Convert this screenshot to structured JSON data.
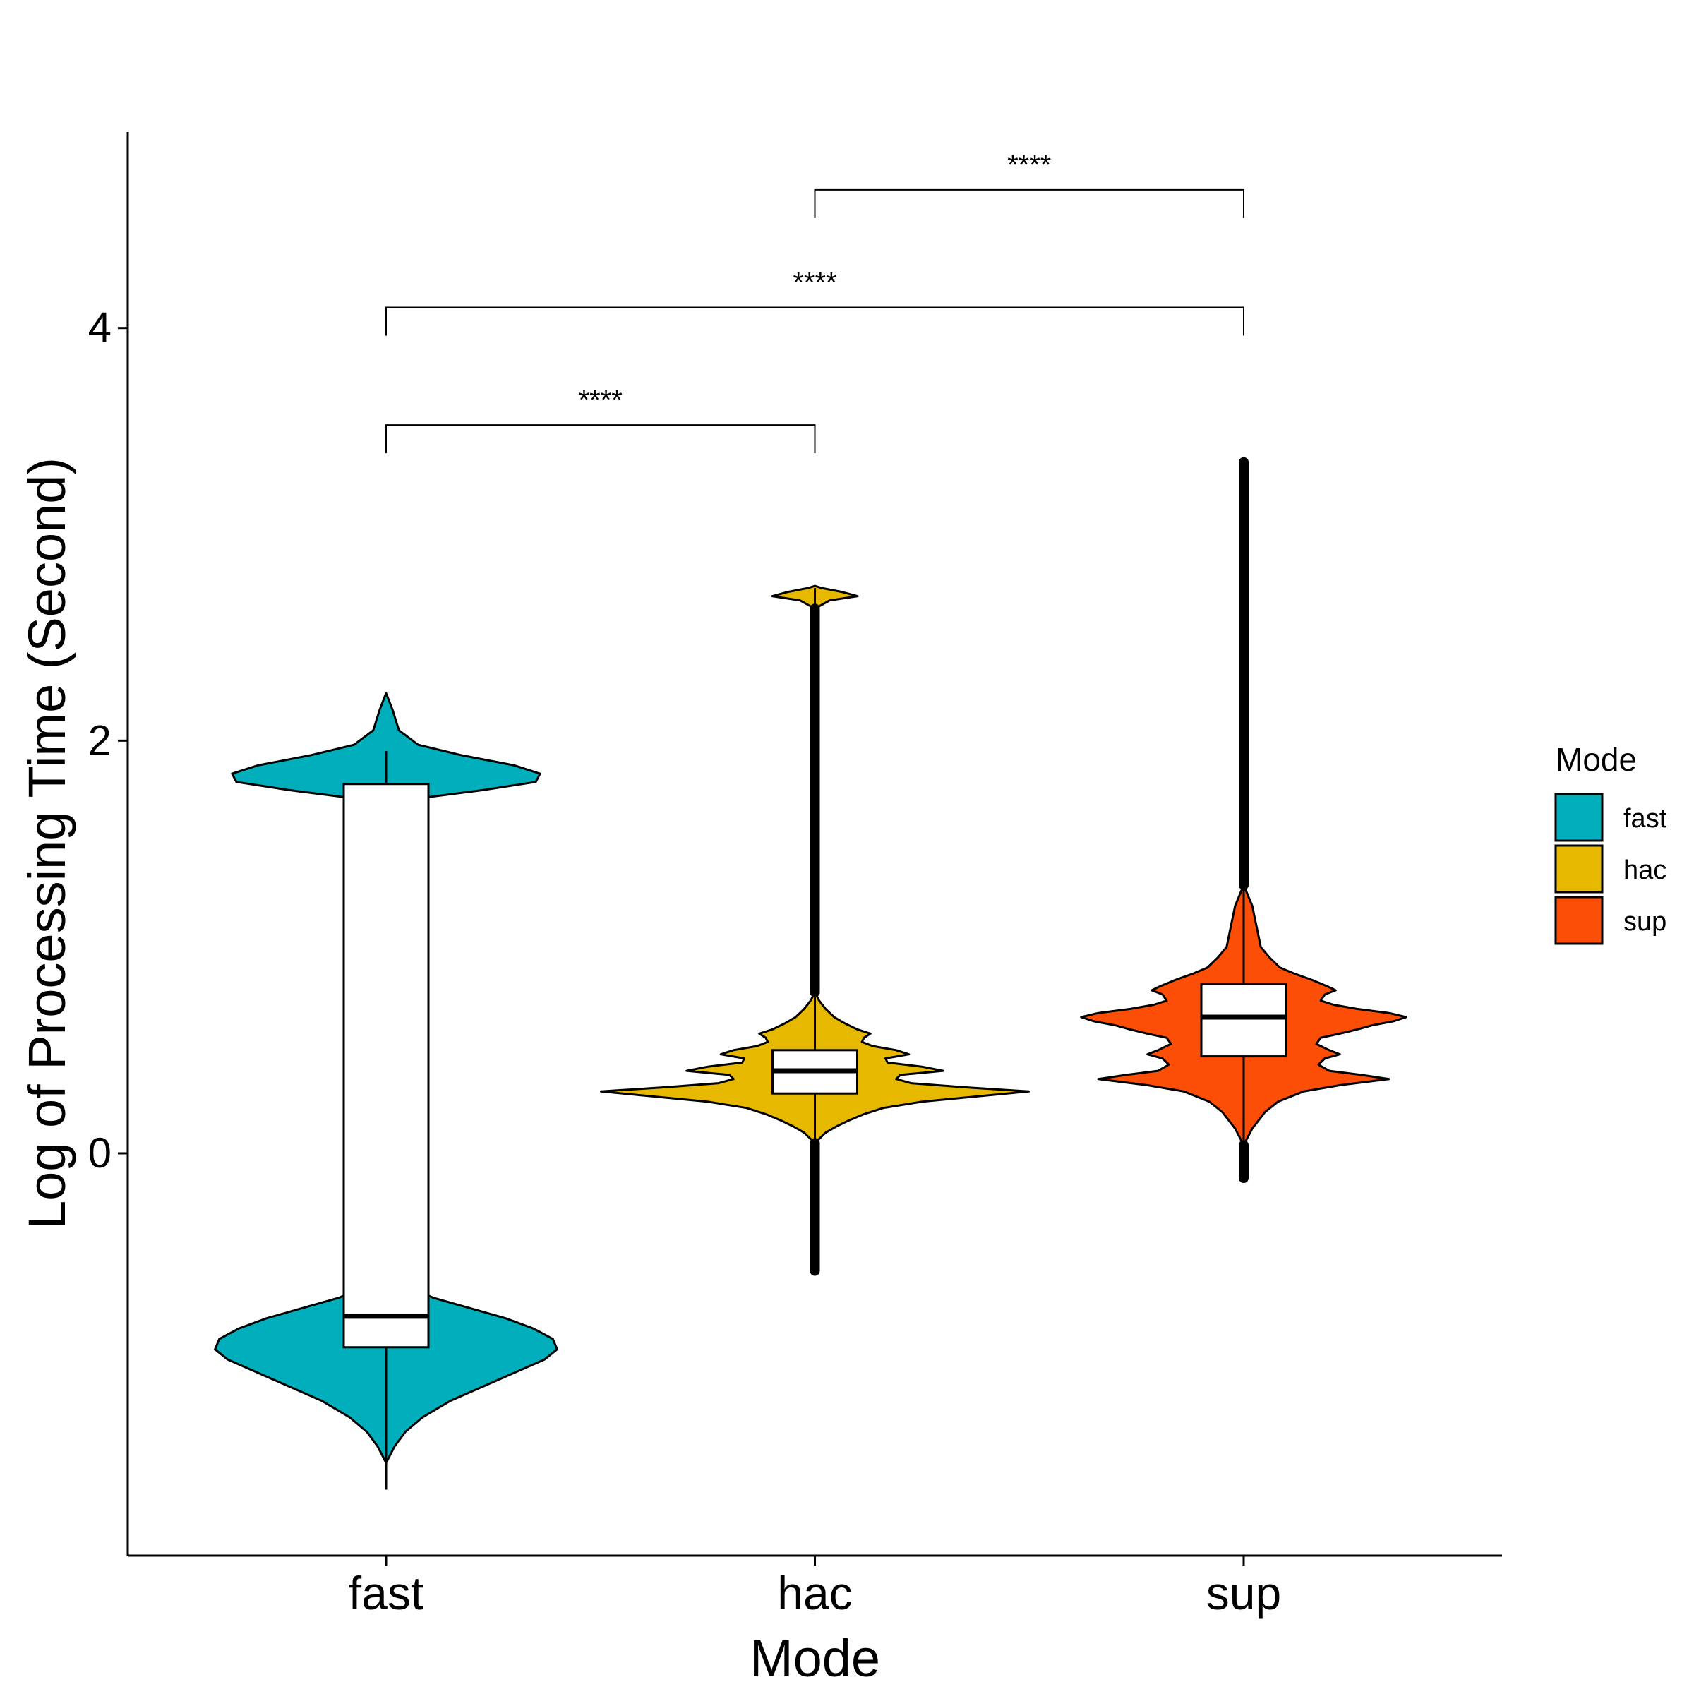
{
  "chart_data": {
    "type": "violin",
    "xlabel": "Mode",
    "ylabel": "Log of Processing Time (Second)",
    "categories": [
      "fast",
      "hac",
      "sup"
    ],
    "ylim": [
      -1.95,
      4.95
    ],
    "yticks": [
      0,
      2,
      4
    ],
    "legend": {
      "title": "Mode",
      "placement": "right",
      "entries": [
        {
          "label": "fast",
          "color": "#00AFBB"
        },
        {
          "label": "hac",
          "color": "#E7B800"
        },
        {
          "label": "sup",
          "color": "#FC4E07"
        }
      ]
    },
    "groups": [
      {
        "name": "fast",
        "color": "#00AFBB",
        "box": {
          "q1": -0.94,
          "median": -0.79,
          "q3": 1.79,
          "whisker_low": -1.63,
          "whisker_high": 1.95
        },
        "violin_min": -1.5,
        "violin_max": 2.23,
        "profile": [
          [
            -1.5,
            0.0
          ],
          [
            -1.42,
            0.04
          ],
          [
            -1.35,
            0.09
          ],
          [
            -1.28,
            0.17
          ],
          [
            -1.2,
            0.3
          ],
          [
            -1.1,
            0.52
          ],
          [
            -1.0,
            0.74
          ],
          [
            -0.95,
            0.8
          ],
          [
            -0.9,
            0.78
          ],
          [
            -0.85,
            0.69
          ],
          [
            -0.8,
            0.56
          ],
          [
            -0.75,
            0.39
          ],
          [
            -0.7,
            0.22
          ],
          [
            -0.65,
            0.11
          ],
          [
            -0.6,
            0.0
          ],
          [
            1.7,
            0.0
          ],
          [
            1.76,
            0.45
          ],
          [
            1.8,
            0.7
          ],
          [
            1.84,
            0.72
          ],
          [
            1.88,
            0.6
          ],
          [
            1.93,
            0.35
          ],
          [
            1.98,
            0.15
          ],
          [
            2.05,
            0.06
          ],
          [
            2.15,
            0.03
          ],
          [
            2.23,
            0.0
          ]
        ],
        "outliers": []
      },
      {
        "name": "hac",
        "color": "#E7B800",
        "box": {
          "q1": 0.29,
          "median": 0.4,
          "q3": 0.5,
          "whisker_low": -0.57,
          "whisker_high": 2.74
        },
        "violin_min": 0.05,
        "violin_max": 2.75,
        "profile": [
          [
            0.05,
            0.0
          ],
          [
            0.07,
            0.02
          ],
          [
            0.1,
            0.05
          ],
          [
            0.13,
            0.1
          ],
          [
            0.16,
            0.16
          ],
          [
            0.19,
            0.23
          ],
          [
            0.22,
            0.32
          ],
          [
            0.25,
            0.5
          ],
          [
            0.28,
            0.8
          ],
          [
            0.3,
            1.0
          ],
          [
            0.32,
            0.7
          ],
          [
            0.34,
            0.45
          ],
          [
            0.36,
            0.38
          ],
          [
            0.38,
            0.4
          ],
          [
            0.4,
            0.6
          ],
          [
            0.42,
            0.5
          ],
          [
            0.44,
            0.34
          ],
          [
            0.46,
            0.33
          ],
          [
            0.48,
            0.44
          ],
          [
            0.5,
            0.38
          ],
          [
            0.52,
            0.27
          ],
          [
            0.54,
            0.22
          ],
          [
            0.56,
            0.23
          ],
          [
            0.58,
            0.26
          ],
          [
            0.6,
            0.2
          ],
          [
            0.63,
            0.14
          ],
          [
            0.66,
            0.09
          ],
          [
            0.7,
            0.05
          ],
          [
            0.74,
            0.02
          ],
          [
            0.78,
            0.0
          ],
          [
            2.64,
            0.0
          ],
          [
            2.68,
            0.07
          ],
          [
            2.7,
            0.2
          ],
          [
            2.72,
            0.13
          ],
          [
            2.74,
            0.03
          ],
          [
            2.75,
            0.0
          ]
        ],
        "outliers": [
          {
            "from": -0.57,
            "to": 0.05
          },
          {
            "from": 0.78,
            "to": 2.64
          }
        ]
      },
      {
        "name": "sup",
        "color": "#FC4E07",
        "box": {
          "q1": 0.47,
          "median": 0.66,
          "q3": 0.82,
          "whisker_low": -0.12,
          "whisker_high": 3.35
        },
        "violin_min": 0.04,
        "violin_max": 1.3,
        "profile": [
          [
            0.04,
            0.0
          ],
          [
            0.08,
            0.02
          ],
          [
            0.12,
            0.04
          ],
          [
            0.16,
            0.07
          ],
          [
            0.2,
            0.1
          ],
          [
            0.25,
            0.16
          ],
          [
            0.3,
            0.28
          ],
          [
            0.33,
            0.45
          ],
          [
            0.36,
            0.68
          ],
          [
            0.38,
            0.55
          ],
          [
            0.4,
            0.4
          ],
          [
            0.43,
            0.35
          ],
          [
            0.46,
            0.38
          ],
          [
            0.48,
            0.45
          ],
          [
            0.5,
            0.4
          ],
          [
            0.53,
            0.34
          ],
          [
            0.56,
            0.36
          ],
          [
            0.58,
            0.45
          ],
          [
            0.6,
            0.53
          ],
          [
            0.62,
            0.6
          ],
          [
            0.64,
            0.7
          ],
          [
            0.66,
            0.76
          ],
          [
            0.68,
            0.68
          ],
          [
            0.7,
            0.53
          ],
          [
            0.72,
            0.42
          ],
          [
            0.74,
            0.36
          ],
          [
            0.77,
            0.38
          ],
          [
            0.79,
            0.43
          ],
          [
            0.81,
            0.39
          ],
          [
            0.84,
            0.32
          ],
          [
            0.87,
            0.24
          ],
          [
            0.9,
            0.17
          ],
          [
            0.95,
            0.12
          ],
          [
            1.0,
            0.08
          ],
          [
            1.1,
            0.06
          ],
          [
            1.2,
            0.04
          ],
          [
            1.3,
            0.0
          ]
        ],
        "outliers": [
          {
            "from": -0.12,
            "to": 0.04
          },
          {
            "from": 1.3,
            "to": 3.35
          }
        ]
      }
    ],
    "comparisons": [
      {
        "from": "fast",
        "to": "hac",
        "label": "****",
        "y": 3.53
      },
      {
        "from": "fast",
        "to": "sup",
        "label": "****",
        "y": 4.1
      },
      {
        "from": "hac",
        "to": "sup",
        "label": "****",
        "y": 4.67
      }
    ]
  }
}
